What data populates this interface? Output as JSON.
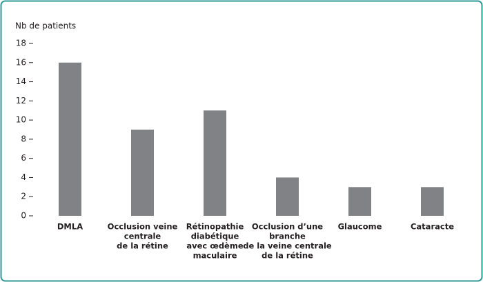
{
  "chart_data": {
    "type": "bar",
    "y_label": "Nb de patients",
    "categories": [
      [
        "DMLA"
      ],
      [
        "Occlusion veine",
        "centrale",
        "de la rétine"
      ],
      [
        "Rétinopathie",
        "diabétique",
        "avec œdème",
        "maculaire"
      ],
      [
        "Occlusion d’une",
        "branche",
        "de la veine centrale",
        "de la rétine"
      ],
      [
        "Glaucome"
      ],
      [
        "Cataracte"
      ]
    ],
    "values": [
      16,
      9,
      11,
      4,
      3,
      3
    ],
    "color": "#808285",
    "ylim": [
      0,
      18
    ],
    "yticks": [
      0,
      2,
      4,
      6,
      8,
      10,
      12,
      14,
      16,
      18
    ],
    "grid": false
  }
}
